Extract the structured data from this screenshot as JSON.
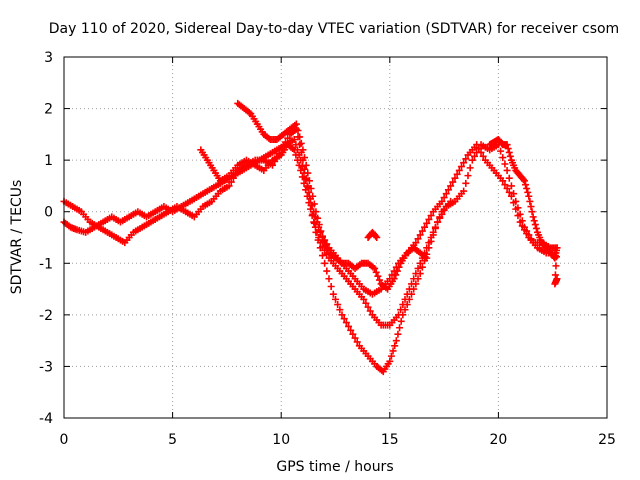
{
  "chart_data": {
    "type": "scatter",
    "title": "Day 110 of 2020, Sidereal Day-to-day VTEC variation (SDTVAR) for receiver csom",
    "xlabel": "GPS time / hours",
    "ylabel": "SDTVAR / TECUs",
    "xlim": [
      0,
      25
    ],
    "ylim": [
      -4,
      3
    ],
    "xticks": [
      "0",
      "5",
      "10",
      "15",
      "20",
      "25"
    ],
    "yticks": [
      "-4",
      "-3",
      "-2",
      "-1",
      "0",
      "1",
      "2",
      "3"
    ],
    "grid": true,
    "marker": "plus",
    "series_color": "#ff0000",
    "series": [
      {
        "x": [
          0.0,
          0.3,
          0.6,
          1.0,
          1.4,
          1.8,
          2.2,
          2.6,
          3.0,
          3.4,
          3.8,
          4.2,
          4.6,
          5.0,
          5.4,
          5.8,
          6.2,
          6.6,
          7.0,
          7.4,
          7.8,
          8.2,
          8.6,
          9.0,
          9.4,
          9.8,
          10.2,
          10.6,
          10.9,
          11.2,
          11.5,
          11.8,
          12.2,
          12.6,
          13.0,
          13.4,
          13.8,
          14.2,
          14.6,
          15.0,
          15.4,
          15.8,
          16.2,
          16.6,
          17.0,
          17.4,
          17.8,
          18.2,
          18.6,
          19.0,
          19.4,
          19.8,
          20.2,
          20.6,
          21.0,
          21.4,
          21.8,
          22.2,
          22.6
        ],
        "y": [
          -0.2,
          -0.3,
          -0.35,
          -0.4,
          -0.3,
          -0.2,
          -0.1,
          -0.2,
          -0.1,
          0.0,
          -0.1,
          0.0,
          0.1,
          0.0,
          0.1,
          0.2,
          0.3,
          0.4,
          0.5,
          0.6,
          0.7,
          0.8,
          0.9,
          1.0,
          1.1,
          1.2,
          1.3,
          1.4,
          1.0,
          0.5,
          0.0,
          -0.4,
          -0.7,
          -0.9,
          -1.1,
          -1.3,
          -1.5,
          -1.6,
          -1.5,
          -1.3,
          -1.0,
          -0.8,
          -0.6,
          -0.3,
          0.0,
          0.2,
          0.5,
          0.8,
          1.1,
          1.3,
          1.0,
          0.8,
          0.6,
          0.3,
          -0.2,
          -0.5,
          -0.7,
          -0.8,
          -0.8
        ]
      },
      {
        "x": [
          0.0,
          0.4,
          0.8,
          1.2,
          1.6,
          2.0,
          2.4,
          2.8,
          3.2,
          3.6,
          4.0,
          4.4,
          4.8,
          5.2,
          5.6,
          6.0,
          6.4,
          6.8,
          7.2,
          7.6,
          8.0,
          8.4,
          8.8,
          9.2,
          9.6,
          10.0,
          10.4,
          10.7,
          11.0,
          11.3,
          11.6,
          12.0,
          12.4,
          12.8,
          13.2,
          13.6,
          14.0,
          14.4,
          14.7,
          15.0,
          15.3,
          15.6,
          16.0,
          16.4,
          16.8,
          17.2,
          17.6,
          18.0,
          18.4,
          18.8,
          19.2,
          19.6,
          20.0,
          20.4,
          20.8,
          21.2,
          21.6,
          22.0,
          22.4,
          22.7
        ],
        "y": [
          0.2,
          0.1,
          0.0,
          -0.2,
          -0.3,
          -0.4,
          -0.5,
          -0.6,
          -0.4,
          -0.3,
          -0.2,
          -0.1,
          0.0,
          0.1,
          0.0,
          -0.1,
          0.1,
          0.2,
          0.4,
          0.5,
          0.8,
          0.9,
          1.0,
          1.0,
          0.9,
          1.2,
          1.5,
          1.6,
          1.0,
          0.3,
          -0.4,
          -1.0,
          -1.6,
          -2.0,
          -2.3,
          -2.6,
          -2.8,
          -3.0,
          -3.1,
          -2.9,
          -2.5,
          -2.0,
          -1.6,
          -1.2,
          -0.7,
          -0.2,
          0.1,
          0.2,
          0.4,
          1.0,
          1.3,
          1.2,
          1.3,
          0.8,
          0.2,
          -0.3,
          -0.6,
          -0.6,
          -0.7,
          -0.7
        ]
      },
      {
        "x": [
          6.3,
          6.6,
          6.9,
          7.2,
          7.6,
          8.0,
          8.4,
          8.8,
          9.2,
          9.6,
          10.0,
          10.3,
          10.6,
          10.9,
          11.2,
          11.5,
          11.8,
          12.2,
          12.6,
          13.0,
          13.4,
          13.8,
          14.2,
          14.6,
          15.0,
          15.4,
          15.8,
          16.2,
          16.6,
          17.0,
          17.4,
          17.8
        ],
        "y": [
          1.2,
          1.0,
          0.8,
          0.6,
          0.7,
          0.9,
          1.0,
          0.9,
          0.8,
          1.0,
          1.1,
          1.3,
          1.2,
          0.8,
          0.3,
          -0.2,
          -0.6,
          -0.9,
          -1.1,
          -1.3,
          -1.5,
          -1.7,
          -2.0,
          -2.2,
          -2.2,
          -2.0,
          -1.6,
          -1.2,
          -0.8,
          -0.4,
          0.0,
          0.2
        ]
      },
      {
        "x": [
          8.0,
          8.3,
          8.6,
          8.9,
          9.2,
          9.5,
          9.8,
          10.1,
          10.4,
          10.7,
          11.0,
          11.3,
          11.6,
          11.9,
          12.2,
          12.5,
          12.8,
          13.1,
          13.4,
          13.7,
          14.0,
          14.3,
          14.6,
          14.9,
          15.2,
          15.5,
          15.8,
          16.1,
          16.4,
          16.7
        ],
        "y": [
          2.1,
          2.0,
          1.9,
          1.7,
          1.5,
          1.4,
          1.4,
          1.5,
          1.6,
          1.7,
          1.2,
          0.6,
          0.0,
          -0.5,
          -0.8,
          -0.9,
          -1.0,
          -1.0,
          -1.1,
          -1.0,
          -1.0,
          -1.1,
          -1.4,
          -1.5,
          -1.3,
          -1.0,
          -0.8,
          -0.7,
          -0.8,
          -0.9
        ]
      },
      {
        "x": [
          14.0,
          14.2,
          14.4,
          19.6,
          19.8,
          20.0,
          20.2,
          20.4,
          20.6,
          20.8,
          21.0,
          21.2,
          21.4,
          21.6,
          21.8,
          22.0,
          22.2,
          22.4,
          22.6,
          22.7,
          22.6,
          22.7
        ],
        "y": [
          -0.5,
          -0.4,
          -0.5,
          1.3,
          1.35,
          1.4,
          1.3,
          1.3,
          1.0,
          0.8,
          0.7,
          0.6,
          0.3,
          -0.1,
          -0.4,
          -0.6,
          -0.7,
          -0.8,
          -0.9,
          -0.7,
          -1.4,
          -1.3
        ]
      }
    ]
  }
}
